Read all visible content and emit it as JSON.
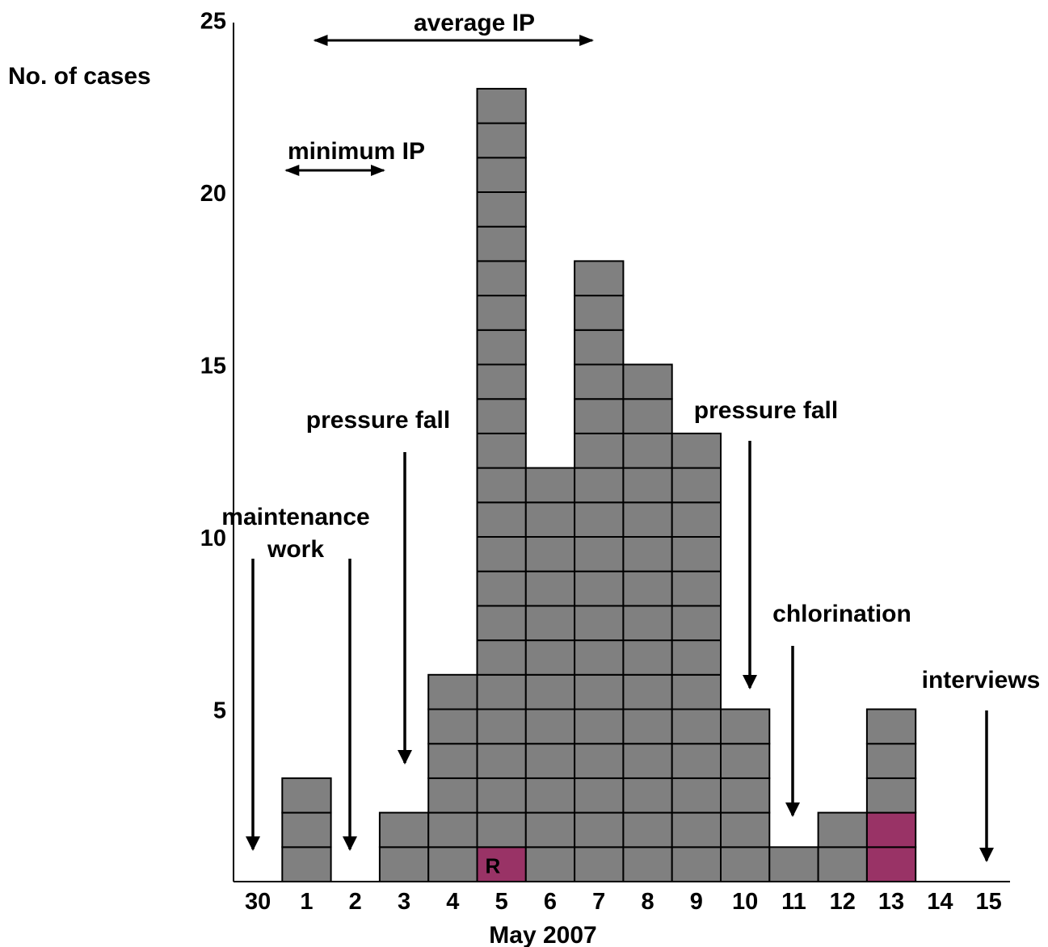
{
  "chart_data": {
    "type": "bar",
    "style": "epidemic-curve-stacked-squares",
    "ylabel": "No. of cases",
    "xlabel": "May 2007",
    "ylim": [
      0,
      25
    ],
    "yticks": [
      5,
      10,
      15,
      20,
      25
    ],
    "categories": [
      "30",
      "1",
      "2",
      "3",
      "4",
      "5",
      "6",
      "7",
      "8",
      "9",
      "10",
      "11",
      "12",
      "13",
      "14",
      "15"
    ],
    "values": [
      0,
      3,
      0,
      2,
      6,
      23,
      12,
      18,
      15,
      13,
      5,
      1,
      2,
      5,
      0,
      0
    ],
    "highlighted_cases": [
      {
        "category": "5",
        "count": 1,
        "label": "R"
      },
      {
        "category": "13",
        "count": 2,
        "label": ""
      }
    ],
    "colors": {
      "case": "#808080",
      "highlight": "#993366",
      "border": "#000000"
    },
    "annotations": {
      "average_ip": {
        "text": "average IP",
        "from": "2",
        "to": "7"
      },
      "minimum_ip": {
        "text": "minimum IP",
        "from": "1",
        "to": "3"
      },
      "events": [
        {
          "lines": [
            "maintenance"
          ],
          "at": "30"
        },
        {
          "lines": [
            "work"
          ],
          "at": "2"
        },
        {
          "lines": [
            "pressure fall"
          ],
          "at": "3"
        },
        {
          "lines": [
            "pressure fall"
          ],
          "at": "10"
        },
        {
          "lines": [
            "chlorination"
          ],
          "at": "11"
        },
        {
          "lines": [
            "interviews"
          ],
          "at": "15"
        }
      ]
    }
  }
}
